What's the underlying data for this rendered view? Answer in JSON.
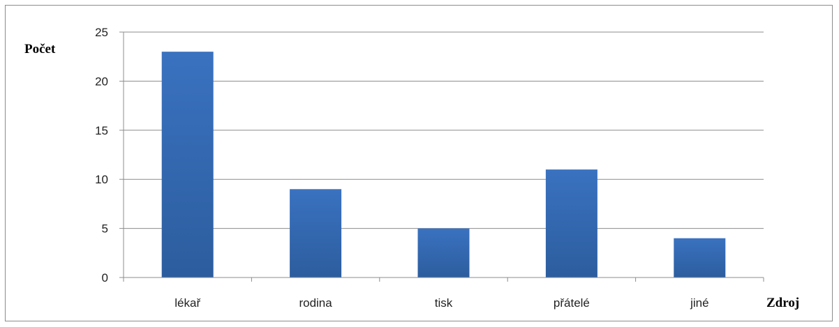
{
  "chart_data": {
    "type": "bar",
    "categories": [
      "lékař",
      "rodina",
      "tisk",
      "přátelé",
      "jiné"
    ],
    "values": [
      23,
      9,
      5,
      11,
      4
    ],
    "title": "",
    "xlabel": "Zdroj",
    "ylabel": "Počet",
    "ylim": [
      0,
      25
    ],
    "yticks": [
      0,
      5,
      10,
      15,
      20,
      25
    ],
    "grid": true,
    "legend": "none",
    "bar_color": "#3a72c0",
    "bar_color_dark": "#2c5d9e",
    "grid_color": "#8c8c8c"
  }
}
